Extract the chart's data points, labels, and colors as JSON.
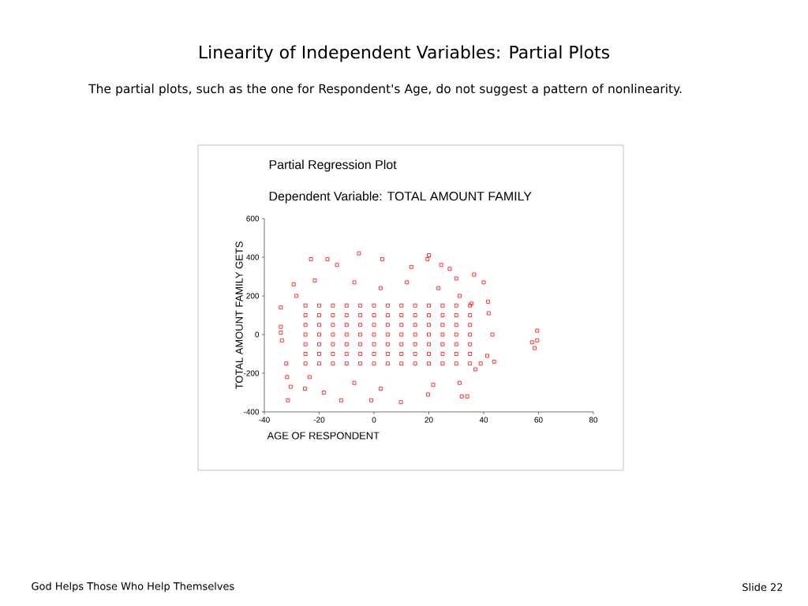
{
  "chart_data": {
    "type": "scatter",
    "title": "Partial Regression Plot",
    "subtitle": "Dependent Variable: TOTAL AMOUNT FAMILY",
    "xlabel": "AGE OF RESPONDENT",
    "ylabel": "TOTAL AMOUNT FAMILY GETS",
    "annotations": [
      "Linearity of Independent Variables: Partial Plots",
      "The partial plots, such as the one for Respondent's Age, do not suggest a pattern of nonlinearity.",
      "God Helps Those Who Help Themselves",
      "Slide 22"
    ],
    "x": [
      -5.5,
      -23,
      -17,
      20,
      19.5,
      3,
      -13.5,
      13.6,
      24.5,
      27.6,
      36.5,
      40,
      30,
      -29.3,
      -31.4,
      9.8,
      -12,
      -1,
      34,
      32,
      -30.4,
      -25.2,
      -18.3,
      43.8,
      38.9,
      43.2,
      59.5,
      58.6,
      57.6,
      59.5,
      41.3,
      41.6,
      41.8,
      -34,
      -34,
      -34,
      -33.6,
      -32,
      -31.7,
      19.7,
      21.6,
      2.4,
      -7.2,
      -23.5,
      31.2,
      37,
      35.5,
      31.2,
      12,
      -7.2,
      -21.6,
      2.4,
      23.5,
      -28.3,
      -25,
      -25,
      -25,
      -25,
      -25,
      -25,
      -25,
      -20,
      -20,
      -20,
      -20,
      -20,
      -20,
      -20,
      -15,
      -15,
      -15,
      -15,
      -15,
      -15,
      -15,
      -10,
      -10,
      -10,
      -10,
      -10,
      -10,
      -10,
      -5,
      -5,
      -5,
      -5,
      -5,
      -5,
      -5,
      0,
      0,
      0,
      0,
      0,
      0,
      0,
      5,
      5,
      5,
      5,
      5,
      5,
      5,
      10,
      10,
      10,
      10,
      10,
      10,
      10,
      15,
      15,
      15,
      15,
      15,
      15,
      15,
      20,
      20,
      20,
      20,
      20,
      20,
      20,
      25,
      25,
      25,
      25,
      25,
      25,
      25,
      30,
      30,
      30,
      30,
      30,
      30,
      30,
      35,
      35,
      35,
      35,
      35,
      35,
      35
    ],
    "values": [
      420,
      390,
      390,
      410,
      390,
      390,
      360,
      350,
      360,
      340,
      310,
      270,
      290,
      260,
      -340,
      -350,
      -340,
      -340,
      -320,
      -320,
      -270,
      -280,
      -300,
      -140,
      -150,
      0,
      20,
      -70,
      -40,
      -30,
      -110,
      170,
      110,
      140,
      40,
      10,
      -30,
      -150,
      -220,
      -310,
      -260,
      -280,
      -250,
      -220,
      -250,
      -180,
      160,
      200,
      270,
      270,
      280,
      240,
      240,
      200,
      -150,
      -100,
      -50,
      0,
      50,
      100,
      150,
      -150,
      -100,
      -50,
      0,
      50,
      100,
      150,
      -150,
      -100,
      -50,
      0,
      50,
      100,
      150,
      -150,
      -100,
      -50,
      0,
      50,
      100,
      150,
      -150,
      -100,
      -50,
      0,
      50,
      100,
      150,
      -150,
      -100,
      -50,
      0,
      50,
      100,
      150,
      -150,
      -100,
      -50,
      0,
      50,
      100,
      150,
      -150,
      -100,
      -50,
      0,
      50,
      100,
      150,
      -150,
      -100,
      -50,
      0,
      50,
      100,
      150,
      -150,
      -100,
      -50,
      0,
      50,
      100,
      150,
      -150,
      -100,
      -50,
      0,
      50,
      100,
      150,
      -150,
      -100,
      -50,
      0,
      50,
      100,
      150,
      -150,
      -100,
      -50,
      0,
      50,
      100,
      150
    ],
    "color": "#ff0000",
    "marker": "square",
    "xlim": [
      -40,
      80
    ],
    "xticks": [
      -40,
      -20,
      0,
      20,
      40,
      60,
      80
    ],
    "ylim": [
      -400,
      600
    ],
    "yticks": [
      -400,
      -200,
      0,
      200,
      400,
      600
    ]
  }
}
